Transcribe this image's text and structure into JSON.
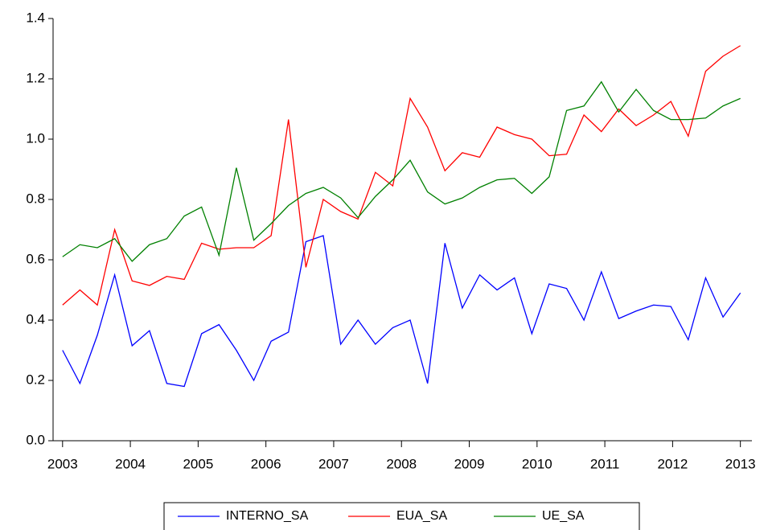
{
  "chart_data": {
    "type": "line",
    "x": [
      2003,
      2003.256,
      2003.513,
      2003.769,
      2004.026,
      2004.282,
      2004.538,
      2004.795,
      2005.051,
      2005.308,
      2005.564,
      2005.821,
      2006.077,
      2006.333,
      2006.59,
      2006.846,
      2007.103,
      2007.359,
      2007.615,
      2007.872,
      2008.128,
      2008.385,
      2008.641,
      2008.897,
      2009.154,
      2009.41,
      2009.667,
      2009.923,
      2010.179,
      2010.436,
      2010.692,
      2010.949,
      2011.205,
      2011.462,
      2011.718,
      2011.974,
      2012.231,
      2012.487,
      2012.744,
      2013
    ],
    "series": [
      {
        "name": "INTERNO_SA",
        "color": "#0000ff",
        "values": [
          0.3,
          0.19,
          0.35,
          0.55,
          0.315,
          0.365,
          0.19,
          0.18,
          0.355,
          0.385,
          0.3,
          0.2,
          0.33,
          0.36,
          0.66,
          0.68,
          0.32,
          0.4,
          0.32,
          0.375,
          0.4,
          0.19,
          0.655,
          0.44,
          0.55,
          0.5,
          0.54,
          0.355,
          0.52,
          0.505,
          0.4,
          0.56,
          0.405,
          0.43,
          0.45,
          0.445,
          0.335,
          0.54,
          0.41,
          0.49
        ]
      },
      {
        "name": "EUA_SA",
        "color": "#ff0000",
        "values": [
          0.45,
          0.5,
          0.45,
          0.7,
          0.53,
          0.515,
          0.545,
          0.535,
          0.655,
          0.635,
          0.64,
          0.64,
          0.68,
          1.065,
          0.575,
          0.8,
          0.76,
          0.735,
          0.89,
          0.845,
          1.135,
          1.04,
          0.895,
          0.955,
          0.94,
          1.04,
          1.015,
          1.0,
          0.945,
          0.95,
          1.08,
          1.025,
          1.1,
          1.045,
          1.08,
          1.125,
          1.01,
          1.225,
          1.275,
          1.31
        ]
      },
      {
        "name": "UE_SA",
        "color": "#008000",
        "values": [
          0.61,
          0.65,
          0.64,
          0.67,
          0.595,
          0.65,
          0.67,
          0.745,
          0.775,
          0.615,
          0.905,
          0.665,
          0.72,
          0.78,
          0.82,
          0.84,
          0.805,
          0.74,
          0.81,
          0.865,
          0.93,
          0.825,
          0.785,
          0.805,
          0.84,
          0.865,
          0.87,
          0.82,
          0.875,
          1.095,
          1.11,
          1.19,
          1.09,
          1.165,
          1.095,
          1.065,
          1.065,
          1.07,
          1.11,
          1.135
        ]
      }
    ],
    "xlim": [
      2002.86,
      2013.17
    ],
    "xticks": [
      2003,
      2004,
      2005,
      2006,
      2007,
      2008,
      2009,
      2010,
      2011,
      2012,
      2013
    ],
    "ylim": [
      0,
      1.4
    ],
    "yticks": [
      {
        "value": 0,
        "label": "0.0"
      },
      0.2,
      0.4,
      0.6,
      0.8,
      {
        "value": 1,
        "label": "1.0"
      },
      1.2,
      1.4
    ],
    "legend": "bottom"
  }
}
